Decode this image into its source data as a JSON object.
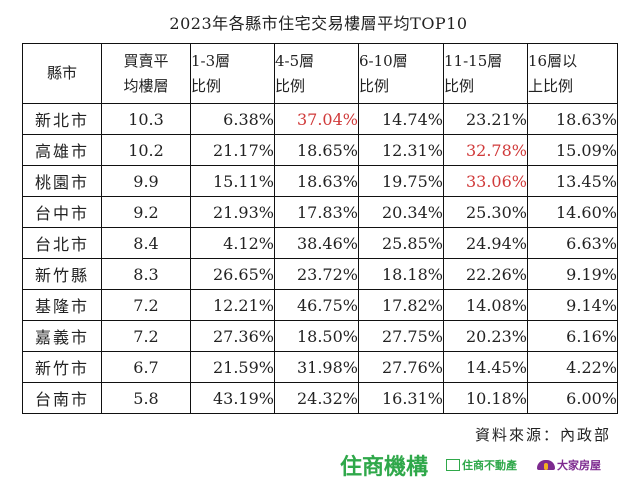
{
  "title": "2023年各縣市住宅交易樓層平均TOP10",
  "table": {
    "headers": [
      {
        "line1": "縣市",
        "line2": ""
      },
      {
        "line1": "買賣平",
        "line2": "均樓層"
      },
      {
        "line1": "1-3層",
        "line2": "比例"
      },
      {
        "line1": "4-5層",
        "line2": "比例"
      },
      {
        "line1": "6-10層",
        "line2": "比例"
      },
      {
        "line1": "11-15層",
        "line2": "比例"
      },
      {
        "line1": "16層以",
        "line2": "上比例"
      }
    ],
    "rows": [
      {
        "city": "新北市",
        "avg": "10.3",
        "f1_3": "6.38%",
        "f4_5": "37.04%",
        "f6_10": "14.74%",
        "f11_15": "23.21%",
        "f16": "18.63%"
      },
      {
        "city": "高雄市",
        "avg": "10.2",
        "f1_3": "21.17%",
        "f4_5": "18.65%",
        "f6_10": "12.31%",
        "f11_15": "32.78%",
        "f16": "15.09%"
      },
      {
        "city": "桃園市",
        "avg": "9.9",
        "f1_3": "15.11%",
        "f4_5": "18.63%",
        "f6_10": "19.75%",
        "f11_15": "33.06%",
        "f16": "13.45%"
      },
      {
        "city": "台中市",
        "avg": "9.2",
        "f1_3": "21.93%",
        "f4_5": "17.83%",
        "f6_10": "20.34%",
        "f11_15": "25.30%",
        "f16": "14.60%"
      },
      {
        "city": "台北市",
        "avg": "8.4",
        "f1_3": "4.12%",
        "f4_5": "38.46%",
        "f6_10": "25.85%",
        "f11_15": "24.94%",
        "f16": "6.63%"
      },
      {
        "city": "新竹縣",
        "avg": "8.3",
        "f1_3": "26.65%",
        "f4_5": "23.72%",
        "f6_10": "18.18%",
        "f11_15": "22.26%",
        "f16": "9.19%"
      },
      {
        "city": "基隆市",
        "avg": "7.2",
        "f1_3": "12.21%",
        "f4_5": "46.75%",
        "f6_10": "17.82%",
        "f11_15": "14.08%",
        "f16": "9.14%"
      },
      {
        "city": "嘉義市",
        "avg": "7.2",
        "f1_3": "27.36%",
        "f4_5": "18.50%",
        "f6_10": "27.75%",
        "f11_15": "20.23%",
        "f16": "6.16%"
      },
      {
        "city": "新竹市",
        "avg": "6.7",
        "f1_3": "21.59%",
        "f4_5": "31.98%",
        "f6_10": "27.76%",
        "f11_15": "14.45%",
        "f16": "4.22%"
      },
      {
        "city": "台南市",
        "avg": "5.8",
        "f1_3": "43.19%",
        "f4_5": "24.32%",
        "f6_10": "16.31%",
        "f11_15": "10.18%",
        "f16": "6.00%"
      }
    ],
    "highlights": [
      {
        "row": 0,
        "col": "f4_5"
      },
      {
        "row": 1,
        "col": "f11_15"
      },
      {
        "row": 2,
        "col": "f11_15"
      }
    ]
  },
  "source": "資料來源：內政部",
  "logos": {
    "main": "住商機構",
    "brand2": "住商不動產",
    "brand3": "大家房屋"
  },
  "colors": {
    "highlight": "#d03a3a",
    "brand_green": "#2fa84a",
    "brand_purple": "#7d2a8f"
  }
}
